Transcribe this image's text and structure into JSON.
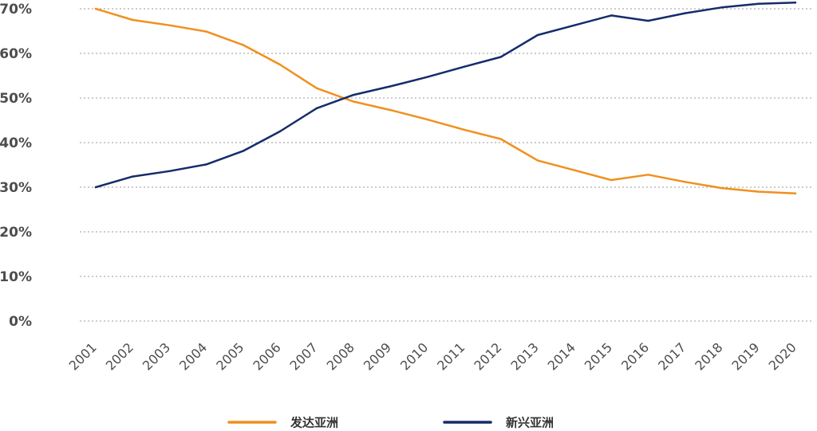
{
  "chart_data": {
    "type": "line",
    "title": "",
    "xlabel": "",
    "ylabel": "",
    "x": [
      "2001",
      "2002",
      "2003",
      "2004",
      "2005",
      "2006",
      "2007",
      "2008",
      "2009",
      "2010",
      "2011",
      "2012",
      "2013",
      "2014",
      "2015",
      "2016",
      "2017",
      "2018",
      "2019",
      "2020"
    ],
    "ylim": [
      0,
      70
    ],
    "yticks": [
      0,
      10,
      20,
      30,
      40,
      50,
      60,
      70
    ],
    "ytick_labels": [
      "0%",
      "10%",
      "20%",
      "30%",
      "40%",
      "50%",
      "60%",
      "70%"
    ],
    "grid": true,
    "legend_position": "bottom-center",
    "series": [
      {
        "name": "发达亚洲",
        "color": "#F0901E",
        "values": [
          70.0,
          67.5,
          66.3,
          64.9,
          61.9,
          57.5,
          52.2,
          49.2,
          47.3,
          45.2,
          42.9,
          40.8,
          36.0,
          33.8,
          31.6,
          32.8,
          31.2,
          29.8,
          29.0,
          28.6
        ]
      },
      {
        "name": "新兴亚洲",
        "color": "#152C6B",
        "values": [
          30.0,
          32.4,
          33.6,
          35.1,
          38.1,
          42.5,
          47.7,
          50.7,
          52.6,
          54.7,
          57.0,
          59.2,
          64.1,
          66.3,
          68.5,
          67.3,
          69.0,
          70.3,
          71.1,
          71.4
        ]
      }
    ]
  }
}
